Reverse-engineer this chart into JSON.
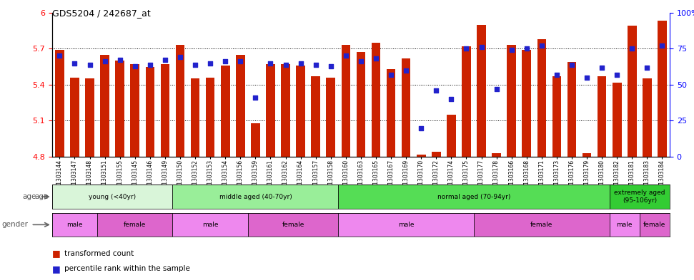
{
  "title": "GDS5204 / 242687_at",
  "samples": [
    "GSM1303144",
    "GSM1303147",
    "GSM1303148",
    "GSM1303151",
    "GSM1303155",
    "GSM1303145",
    "GSM1303146",
    "GSM1303149",
    "GSM1303150",
    "GSM1303152",
    "GSM1303153",
    "GSM1303154",
    "GSM1303156",
    "GSM1303159",
    "GSM1303161",
    "GSM1303162",
    "GSM1303164",
    "GSM1303157",
    "GSM1303158",
    "GSM1303160",
    "GSM1303163",
    "GSM1303165",
    "GSM1303167",
    "GSM1303169",
    "GSM1303170",
    "GSM1303172",
    "GSM1303174",
    "GSM1303175",
    "GSM1303177",
    "GSM1303178",
    "GSM1303166",
    "GSM1303168",
    "GSM1303171",
    "GSM1303173",
    "GSM1303176",
    "GSM1303179",
    "GSM1303180",
    "GSM1303182",
    "GSM1303181",
    "GSM1303183",
    "GSM1303184"
  ],
  "bar_values": [
    5.69,
    5.46,
    5.45,
    5.65,
    5.6,
    5.57,
    5.55,
    5.57,
    5.73,
    5.45,
    5.46,
    5.56,
    5.65,
    5.08,
    5.57,
    5.57,
    5.56,
    5.47,
    5.46,
    5.73,
    5.67,
    5.75,
    5.53,
    5.62,
    4.82,
    4.84,
    5.15,
    5.72,
    5.9,
    4.83,
    5.73,
    5.69,
    5.78,
    5.47,
    5.59,
    4.83,
    5.47,
    5.42,
    5.89,
    5.45,
    5.93
  ],
  "percentile_values": [
    70,
    65,
    64,
    66,
    67,
    63,
    64,
    67,
    69,
    64,
    65,
    66,
    66,
    41,
    65,
    64,
    65,
    64,
    63,
    70,
    66,
    68,
    57,
    60,
    20,
    46,
    40,
    75,
    76,
    47,
    74,
    75,
    77,
    57,
    64,
    55,
    62,
    57,
    75,
    62,
    77
  ],
  "ylim_left": [
    4.8,
    6.0
  ],
  "ylim_right": [
    0,
    100
  ],
  "yticks_left": [
    4.8,
    5.1,
    5.4,
    5.7,
    6.0
  ],
  "yticks_right": [
    0,
    25,
    50,
    75,
    100
  ],
  "ytick_labels_left": [
    "4.8",
    "5.1",
    "5.4",
    "5.7",
    "6"
  ],
  "ytick_labels_right": [
    "0",
    "25",
    "50",
    "75",
    "100%"
  ],
  "bar_color": "#cc2200",
  "dot_color": "#2222cc",
  "bar_width": 0.6,
  "age_groups": [
    {
      "label": "young (<40yr)",
      "start": 0,
      "end": 8,
      "color": "#d9f5d9"
    },
    {
      "label": "middle aged (40-70yr)",
      "start": 8,
      "end": 19,
      "color": "#99ee99"
    },
    {
      "label": "normal aged (70-94yr)",
      "start": 19,
      "end": 37,
      "color": "#55dd55"
    },
    {
      "label": "extremely aged\n(95-106yr)",
      "start": 37,
      "end": 41,
      "color": "#33cc33"
    }
  ],
  "gender_groups": [
    {
      "label": "male",
      "start": 0,
      "end": 3,
      "color": "#ee88ee"
    },
    {
      "label": "female",
      "start": 3,
      "end": 8,
      "color": "#dd66cc"
    },
    {
      "label": "male",
      "start": 8,
      "end": 13,
      "color": "#ee88ee"
    },
    {
      "label": "female",
      "start": 13,
      "end": 19,
      "color": "#dd66cc"
    },
    {
      "label": "male",
      "start": 19,
      "end": 28,
      "color": "#ee88ee"
    },
    {
      "label": "female",
      "start": 28,
      "end": 37,
      "color": "#dd66cc"
    },
    {
      "label": "male",
      "start": 37,
      "end": 39,
      "color": "#ee88ee"
    },
    {
      "label": "female",
      "start": 39,
      "end": 41,
      "color": "#dd66cc"
    }
  ],
  "legend_items": [
    {
      "label": "transformed count",
      "color": "#cc2200"
    },
    {
      "label": "percentile rank within the sample",
      "color": "#2222cc"
    }
  ],
  "fig_width": 9.71,
  "fig_height": 3.93,
  "dpi": 100
}
